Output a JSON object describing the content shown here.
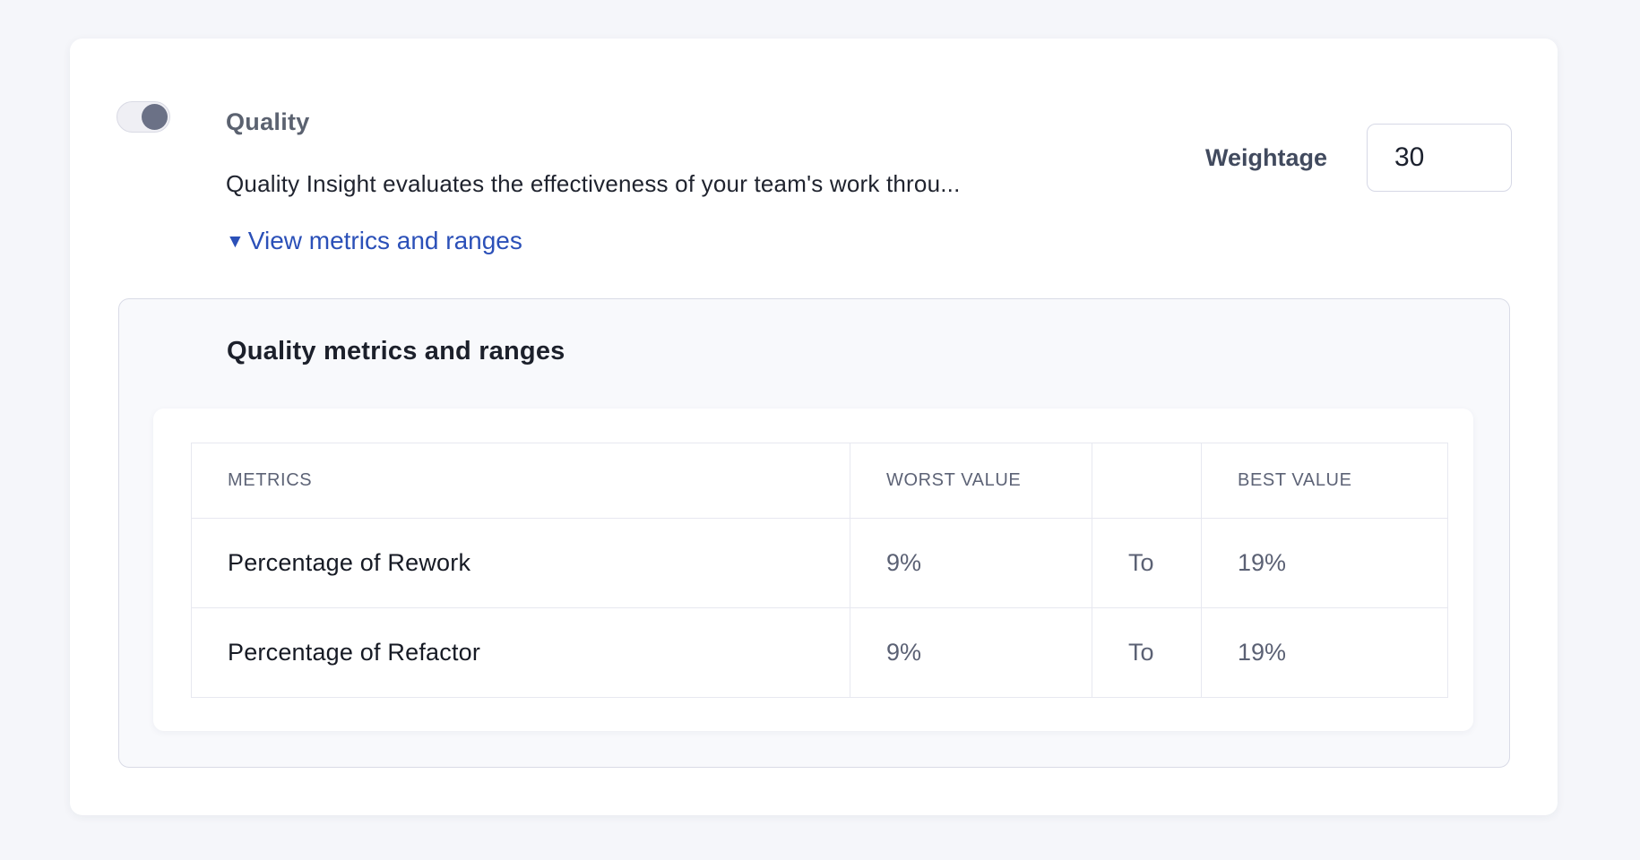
{
  "card": {
    "toggle": {
      "name": "quality-toggle",
      "state": "on"
    },
    "title": "Quality",
    "description": "Quality Insight evaluates the effectiveness of your team's work throu...",
    "weightage": {
      "label": "Weightage",
      "value": "30"
    },
    "link": {
      "caret": "▼",
      "label": "View metrics and ranges"
    }
  },
  "panel": {
    "heading": "Quality metrics and ranges",
    "table": {
      "headers": {
        "metrics": "METRICS",
        "worst": "WORST VALUE",
        "spacer": "",
        "best": "BEST VALUE"
      },
      "rows": [
        {
          "metric": "Percentage of Rework",
          "worst": "9%",
          "to": "To",
          "best": "19%"
        },
        {
          "metric": "Percentage of Refactor",
          "worst": "9%",
          "to": "To",
          "best": "19%"
        }
      ]
    }
  },
  "colors": {
    "page_bg": "#f5f6fa",
    "card_bg": "#ffffff",
    "panel_bg": "#f8f9fc",
    "panel_border": "#d9dbe6",
    "link_blue": "#2b50b8",
    "toggle_knob": "#6b7186",
    "table_border": "#e7e8f0",
    "muted_text": "#5b6174"
  }
}
